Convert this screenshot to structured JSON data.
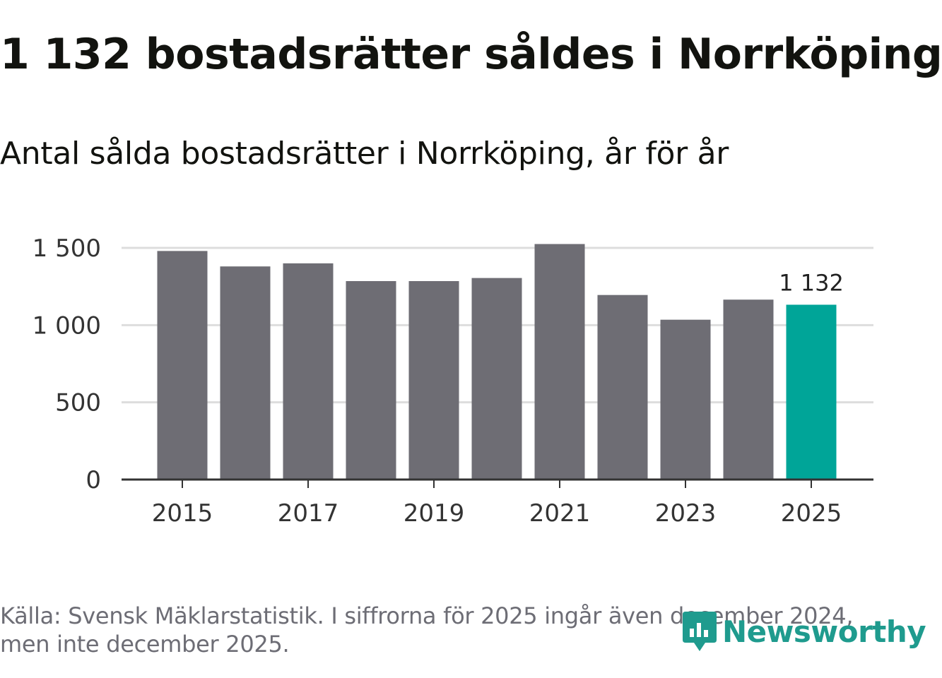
{
  "header": {
    "title": "1 132 bostadsrätter såldes i Norrköping",
    "subtitle": "Antal sålda bostadsrätter i Norrköping, år för år"
  },
  "chart_data": {
    "type": "bar",
    "title": "1 132 bostadsrätter såldes i Norrköping",
    "subtitle": "Antal sålda bostadsrätter i Norrköping, år för år",
    "categories": [
      "2015",
      "2016",
      "2017",
      "2018",
      "2019",
      "2020",
      "2021",
      "2022",
      "2023",
      "2024",
      "2025"
    ],
    "values": [
      1480,
      1380,
      1400,
      1285,
      1285,
      1305,
      1525,
      1195,
      1035,
      1165,
      1132
    ],
    "highlight_index": 10,
    "highlight_label": "1 132",
    "xlabel": "",
    "ylabel": "",
    "ylim": [
      0,
      1500
    ],
    "yticks": [
      0,
      500,
      1000,
      1500
    ],
    "ytick_labels": [
      "0",
      "500",
      "1 000",
      "1 500"
    ],
    "xtick_labels": [
      "2015",
      "2017",
      "2019",
      "2021",
      "2023",
      "2025"
    ],
    "grid": true,
    "bar_color": "#6e6d74",
    "highlight_color": "#00a598"
  },
  "footer": {
    "source": "Källa: Svensk Mäklarstatistik. I siffrorna för 2025 ingår även december 2024, men inte december 2025.",
    "brand": "Newsworthy",
    "brand_color": "#1f9b8e",
    "logo_icon": "newsworthy-logo-icon"
  }
}
